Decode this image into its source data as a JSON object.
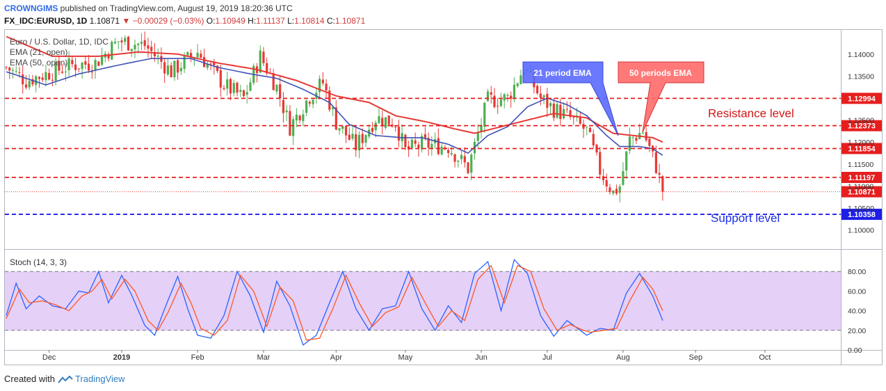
{
  "header": {
    "publisher": "CROWNGIMS",
    "published_text": "published on TradingView.com, August 19, 2019 18:20:36 UTC",
    "symbol": "FX_IDC:EURUSD, 1D",
    "last": "1.10871",
    "change": "−0.00029 (−0.03%)",
    "open_label": "O:",
    "open": "1.10949",
    "high_label": "H:",
    "high": "1.11137",
    "low_label": "L:",
    "low": "1.10814",
    "close_label": "C:",
    "close": "1.10871"
  },
  "footer": {
    "created_with": "Created with",
    "brand": "TradingView"
  },
  "chart_data": [
    {
      "type": "candlestick",
      "legend": [
        "Euro / U.S. Dollar, 1D, IDC",
        "EMA (21, open)",
        "EMA (50, open)"
      ],
      "y_range": [
        1.096,
        1.1455
      ],
      "y_ticks": [
        "1.14000",
        "1.13500",
        "1.12500",
        "1.12000",
        "1.11500",
        "1.11000",
        "1.10500",
        "1.10000"
      ],
      "x_ticks": [
        "Dec",
        "2019",
        "Feb",
        "Mar",
        "Apr",
        "May",
        "Jun",
        "Jul",
        "Aug",
        "Sep",
        "Oct"
      ],
      "price_tags": [
        {
          "value": 1.12994,
          "label": "1.12994",
          "color": "#e61e1e"
        },
        {
          "value": 1.12373,
          "label": "1.12373",
          "color": "#e61e1e"
        },
        {
          "value": 1.11854,
          "label": "1.11854",
          "color": "#e61e1e"
        },
        {
          "value": 1.11197,
          "label": "1.11197",
          "color": "#e61e1e"
        },
        {
          "value": 1.10871,
          "label": "1.10871",
          "color": "#e61e1e"
        },
        {
          "value": 1.10358,
          "label": "1.10358",
          "color": "#1e1ee6"
        }
      ],
      "horizontal_levels": [
        {
          "value": 1.12994,
          "color": "#e61e1e"
        },
        {
          "value": 1.12373,
          "color": "#e61e1e"
        },
        {
          "value": 1.11854,
          "color": "#e61e1e"
        },
        {
          "value": 1.11197,
          "color": "#e61e1e"
        },
        {
          "value": 1.10358,
          "color": "#1e1ee6"
        }
      ],
      "annotations": {
        "resistance": "Resistance level",
        "support": "Support level",
        "ema21_callout": "21 period EMA",
        "ema50_callout": "50 periods EMA"
      },
      "colors": {
        "up": "#4caf50",
        "down": "#e53935",
        "ema21": "#3f51b5",
        "ema50": "#e53935"
      },
      "month_ticks": [
        {
          "label": "Dec",
          "t": 13
        },
        {
          "label": "2019",
          "t": 35
        },
        {
          "label": "Feb",
          "t": 58
        },
        {
          "label": "Mar",
          "t": 78
        },
        {
          "label": "Apr",
          "t": 100
        },
        {
          "label": "May",
          "t": 121
        },
        {
          "label": "Jun",
          "t": 144
        },
        {
          "label": "Jul",
          "t": 164
        },
        {
          "label": "Aug",
          "t": 187
        },
        {
          "label": "Sep",
          "t": 209
        },
        {
          "label": "Oct",
          "t": 230
        }
      ],
      "close_anchors": [
        [
          0,
          1.137
        ],
        [
          6,
          1.134
        ],
        [
          12,
          1.1355
        ],
        [
          20,
          1.1375
        ],
        [
          27,
          1.138
        ],
        [
          34,
          1.143
        ],
        [
          42,
          1.142
        ],
        [
          50,
          1.136
        ],
        [
          58,
          1.1405
        ],
        [
          66,
          1.133
        ],
        [
          72,
          1.13
        ],
        [
          77,
          1.1395
        ],
        [
          82,
          1.1325
        ],
        [
          86,
          1.1235
        ],
        [
          92,
          1.1305
        ],
        [
          96,
          1.1335
        ],
        [
          100,
          1.1245
        ],
        [
          106,
          1.119
        ],
        [
          112,
          1.1255
        ],
        [
          118,
          1.1245
        ],
        [
          121,
          1.118
        ],
        [
          126,
          1.1195
        ],
        [
          134,
          1.119
        ],
        [
          140,
          1.114
        ],
        [
          146,
          1.1295
        ],
        [
          152,
          1.13
        ],
        [
          157,
          1.137
        ],
        [
          162,
          1.13
        ],
        [
          166,
          1.1275
        ],
        [
          170,
          1.126
        ],
        [
          176,
          1.1225
        ],
        [
          180,
          1.1135
        ],
        [
          184,
          1.1085
        ],
        [
          186,
          1.11
        ],
        [
          189,
          1.1205
        ],
        [
          193,
          1.1225
        ],
        [
          197,
          1.1145
        ],
        [
          199,
          1.1087
        ]
      ],
      "ema21": [
        [
          0,
          1.136
        ],
        [
          12,
          1.133
        ],
        [
          22,
          1.1355
        ],
        [
          34,
          1.1375
        ],
        [
          44,
          1.139
        ],
        [
          56,
          1.139
        ],
        [
          64,
          1.137
        ],
        [
          74,
          1.1355
        ],
        [
          82,
          1.1345
        ],
        [
          90,
          1.132
        ],
        [
          98,
          1.129
        ],
        [
          104,
          1.124
        ],
        [
          112,
          1.1215
        ],
        [
          120,
          1.121
        ],
        [
          126,
          1.121
        ],
        [
          134,
          1.1195
        ],
        [
          140,
          1.1175
        ],
        [
          146,
          1.1215
        ],
        [
          152,
          1.1235
        ],
        [
          158,
          1.128
        ],
        [
          164,
          1.13
        ],
        [
          170,
          1.1285
        ],
        [
          176,
          1.126
        ],
        [
          182,
          1.1215
        ],
        [
          186,
          1.119
        ],
        [
          192,
          1.119
        ],
        [
          196,
          1.1185
        ],
        [
          199,
          1.117
        ]
      ],
      "ema50": [
        [
          0,
          1.144
        ],
        [
          14,
          1.1395
        ],
        [
          28,
          1.1395
        ],
        [
          40,
          1.1405
        ],
        [
          52,
          1.14
        ],
        [
          64,
          1.138
        ],
        [
          76,
          1.1365
        ],
        [
          88,
          1.134
        ],
        [
          100,
          1.1305
        ],
        [
          110,
          1.129
        ],
        [
          118,
          1.126
        ],
        [
          128,
          1.1245
        ],
        [
          136,
          1.123
        ],
        [
          142,
          1.122
        ],
        [
          150,
          1.1235
        ],
        [
          158,
          1.125
        ],
        [
          166,
          1.1265
        ],
        [
          176,
          1.1255
        ],
        [
          184,
          1.122
        ],
        [
          190,
          1.1215
        ],
        [
          196,
          1.121
        ],
        [
          199,
          1.12
        ]
      ]
    },
    {
      "type": "line",
      "title": "Stoch (14, 3, 3)",
      "y_range": [
        0,
        100
      ],
      "y_ticks": [
        "80.00",
        "60.00",
        "40.00",
        "20.00",
        "0.00"
      ],
      "bands": [
        20,
        80
      ],
      "series": [
        {
          "color": "#2962ff",
          "values": [
            [
              0,
              35
            ],
            [
              3,
              68
            ],
            [
              6,
              42
            ],
            [
              10,
              55
            ],
            [
              14,
              45
            ],
            [
              18,
              42
            ],
            [
              22,
              60
            ],
            [
              25,
              58
            ],
            [
              28,
              80
            ],
            [
              31,
              48
            ],
            [
              35,
              76
            ],
            [
              38,
              56
            ],
            [
              42,
              25
            ],
            [
              45,
              15
            ],
            [
              48,
              42
            ],
            [
              52,
              75
            ],
            [
              55,
              42
            ],
            [
              58,
              15
            ],
            [
              62,
              12
            ],
            [
              66,
              35
            ],
            [
              70,
              80
            ],
            [
              74,
              55
            ],
            [
              78,
              18
            ],
            [
              82,
              70
            ],
            [
              86,
              45
            ],
            [
              90,
              5
            ],
            [
              94,
              15
            ],
            [
              98,
              48
            ],
            [
              102,
              80
            ],
            [
              106,
              42
            ],
            [
              110,
              20
            ],
            [
              114,
              42
            ],
            [
              118,
              45
            ],
            [
              122,
              80
            ],
            [
              126,
              42
            ],
            [
              130,
              20
            ],
            [
              134,
              45
            ],
            [
              138,
              28
            ],
            [
              142,
              78
            ],
            [
              146,
              90
            ],
            [
              150,
              40
            ],
            [
              154,
              92
            ],
            [
              158,
              78
            ],
            [
              162,
              35
            ],
            [
              166,
              14
            ],
            [
              170,
              30
            ],
            [
              174,
              20
            ],
            [
              176,
              15
            ],
            [
              180,
              22
            ],
            [
              184,
              20
            ],
            [
              188,
              58
            ],
            [
              192,
              78
            ],
            [
              196,
              55
            ],
            [
              199,
              30
            ]
          ]
        },
        {
          "color": "#ff5722",
          "values": [
            [
              0,
              32
            ],
            [
              4,
              62
            ],
            [
              7,
              48
            ],
            [
              11,
              50
            ],
            [
              15,
              46
            ],
            [
              19,
              40
            ],
            [
              23,
              55
            ],
            [
              26,
              60
            ],
            [
              29,
              72
            ],
            [
              32,
              52
            ],
            [
              36,
              72
            ],
            [
              39,
              60
            ],
            [
              43,
              30
            ],
            [
              46,
              20
            ],
            [
              49,
              38
            ],
            [
              53,
              68
            ],
            [
              56,
              48
            ],
            [
              59,
              22
            ],
            [
              63,
              15
            ],
            [
              67,
              30
            ],
            [
              71,
              76
            ],
            [
              75,
              60
            ],
            [
              79,
              24
            ],
            [
              83,
              64
            ],
            [
              87,
              50
            ],
            [
              91,
              10
            ],
            [
              95,
              12
            ],
            [
              99,
              42
            ],
            [
              103,
              76
            ],
            [
              107,
              48
            ],
            [
              111,
              24
            ],
            [
              115,
              38
            ],
            [
              119,
              44
            ],
            [
              123,
              74
            ],
            [
              127,
              48
            ],
            [
              131,
              24
            ],
            [
              135,
              40
            ],
            [
              139,
              30
            ],
            [
              143,
              72
            ],
            [
              147,
              86
            ],
            [
              151,
              48
            ],
            [
              155,
              86
            ],
            [
              159,
              80
            ],
            [
              163,
              42
            ],
            [
              167,
              20
            ],
            [
              171,
              26
            ],
            [
              175,
              20
            ],
            [
              177,
              18
            ],
            [
              181,
              20
            ],
            [
              185,
              22
            ],
            [
              189,
              50
            ],
            [
              193,
              74
            ],
            [
              196,
              62
            ],
            [
              199,
              40
            ]
          ]
        }
      ]
    }
  ]
}
